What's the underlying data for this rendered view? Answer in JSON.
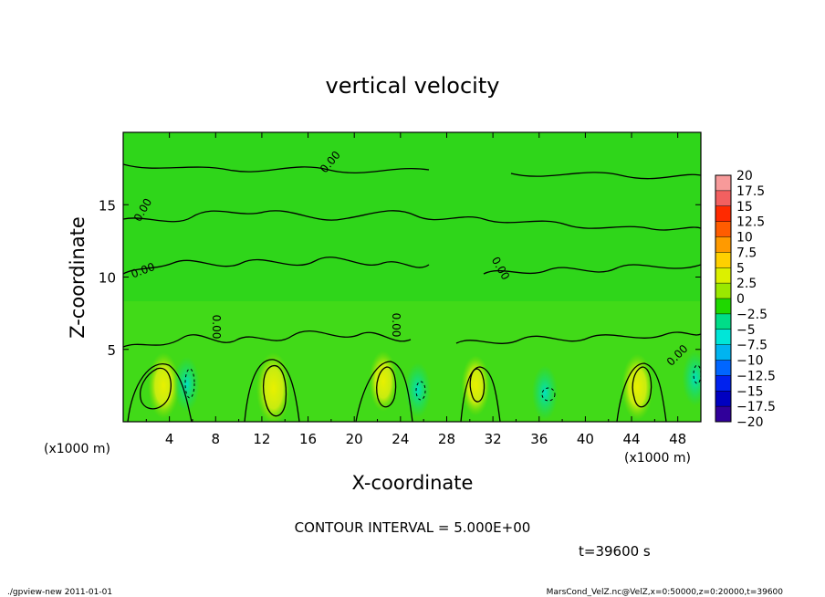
{
  "chart_data": {
    "type": "heatmap",
    "title": "vertical velocity",
    "xlabel": "X-coordinate",
    "ylabel": "Z-coordinate",
    "x_unit": "(x1000 m)",
    "z_unit": "(x1000 m)",
    "xlim": [
      0,
      50
    ],
    "ylim": [
      0,
      20
    ],
    "x_ticks": [
      4,
      8,
      12,
      16,
      20,
      24,
      28,
      32,
      36,
      40,
      44,
      48
    ],
    "y_ticks": [
      5,
      10,
      15
    ],
    "colorbar": {
      "levels": [
        20,
        17.5,
        15,
        12.5,
        10,
        7.5,
        5,
        2.5,
        0,
        -2.5,
        -5,
        -7.5,
        -10,
        -12.5,
        -15,
        -17.5,
        -20
      ],
      "colors": [
        "#f79a9a",
        "#f26060",
        "#ff2a00",
        "#ff5c00",
        "#ff9a00",
        "#ffd000",
        "#dcf000",
        "#9ae800",
        "#1fd800",
        "#00dd88",
        "#00e6d8",
        "#00b4f0",
        "#0066ff",
        "#0022ee",
        "#0000c0",
        "#30009a"
      ]
    },
    "contour_interval_text": "CONTOUR INTERVAL = 5.000E+00",
    "contour_labels": [
      "0.00",
      "0.00",
      "0.00",
      "0.00",
      "0.00",
      "0.00",
      "0.00"
    ],
    "features": [
      {
        "kind": "updraft",
        "x": 3.5,
        "z": 2.5,
        "value": 7
      },
      {
        "kind": "downdraft",
        "x": 5.5,
        "z": 2.6,
        "value": -5
      },
      {
        "kind": "updraft",
        "x": 13,
        "z": 2.3,
        "value": 8
      },
      {
        "kind": "updraft",
        "x": 22.5,
        "z": 2.8,
        "value": 6
      },
      {
        "kind": "downdraft",
        "x": 25.5,
        "z": 2.2,
        "value": -5
      },
      {
        "kind": "updraft",
        "x": 30.5,
        "z": 2.5,
        "value": 6
      },
      {
        "kind": "downdraft",
        "x": 36.5,
        "z": 2.0,
        "value": -5
      },
      {
        "kind": "updraft",
        "x": 44.5,
        "z": 2.4,
        "value": 7
      },
      {
        "kind": "downdraft",
        "x": 49.5,
        "z": 3.0,
        "value": -5
      }
    ]
  },
  "annotations": {
    "time": "t=39600 s",
    "footer_left": "./gpview-new   2011-01-01",
    "footer_right": "MarsCond_VelZ.nc@VelZ,x=0:50000,z=0:20000,t=39600"
  }
}
